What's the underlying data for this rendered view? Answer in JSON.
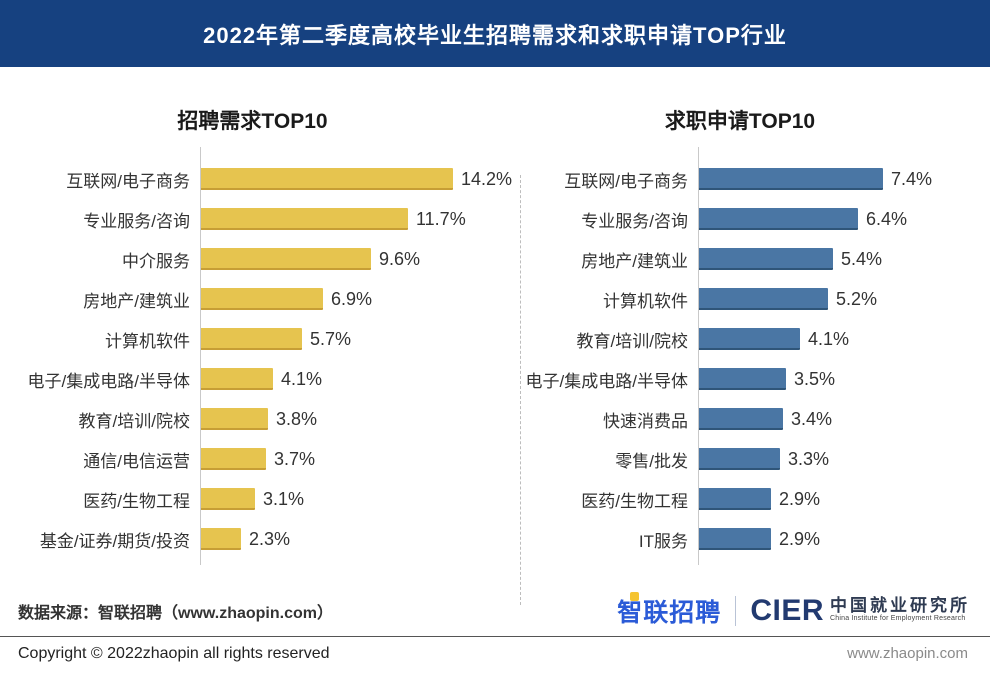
{
  "header": {
    "title": "2022年第二季度高校毕业生招聘需求和求职申请TOP行业"
  },
  "chart_data": [
    {
      "type": "bar",
      "orientation": "horizontal",
      "title": "招聘需求TOP10",
      "categories": [
        "互联网/电子商务",
        "专业服务/咨询",
        "中介服务",
        "房地产/建筑业",
        "计算机软件",
        "电子/集成电路/半导体",
        "教育/培训/院校",
        "通信/电信运营",
        "医药/生物工程",
        "基金/证券/期货/投资"
      ],
      "values": [
        14.2,
        11.7,
        9.6,
        6.9,
        5.7,
        4.1,
        3.8,
        3.7,
        3.1,
        2.3
      ],
      "labels": [
        "14.2%",
        "11.7%",
        "9.6%",
        "6.9%",
        "5.7%",
        "4.1%",
        "3.8%",
        "3.7%",
        "3.1%",
        "2.3%"
      ],
      "value_suffix": "%",
      "bar_color": "#E6C44F",
      "xlim": [
        0,
        14.2
      ],
      "grid": false,
      "legend": "none"
    },
    {
      "type": "bar",
      "orientation": "horizontal",
      "title": "求职申请TOP10",
      "categories": [
        "互联网/电子商务",
        "专业服务/咨询",
        "房地产/建筑业",
        "计算机软件",
        "教育/培训/院校",
        "电子/集成电路/半导体",
        "快速消费品",
        "零售/批发",
        "医药/生物工程",
        "IT服务"
      ],
      "values": [
        7.4,
        6.4,
        5.4,
        5.2,
        4.1,
        3.5,
        3.4,
        3.3,
        2.9,
        2.9
      ],
      "labels": [
        "7.4%",
        "6.4%",
        "5.4%",
        "5.2%",
        "4.1%",
        "3.5%",
        "3.4%",
        "3.3%",
        "2.9%",
        "2.9%"
      ],
      "value_suffix": "%",
      "bar_color": "#4A76A4",
      "xlim": [
        0,
        7.4
      ],
      "grid": false,
      "legend": "none"
    }
  ],
  "source": {
    "note": "数据来源：智联招聘（www.zhaopin.com）"
  },
  "logos": {
    "zhaopin": "智联招聘",
    "cier": "CIER",
    "cier_cn": "中国就业研究所",
    "cier_en": "China Institute for Employment Research"
  },
  "footer": {
    "copyright": "Copyright ©  2022zhaopin all rights reserved",
    "website": "www.zhaopin.com"
  },
  "colors": {
    "banner_bg": "#164180",
    "bar_yellow": "#E6C44F",
    "bar_blue": "#4A76A4",
    "zhaopin_blue": "#2B5BD7",
    "zhaopin_yellow": "#F5C431",
    "cier_navy": "#223A70"
  }
}
